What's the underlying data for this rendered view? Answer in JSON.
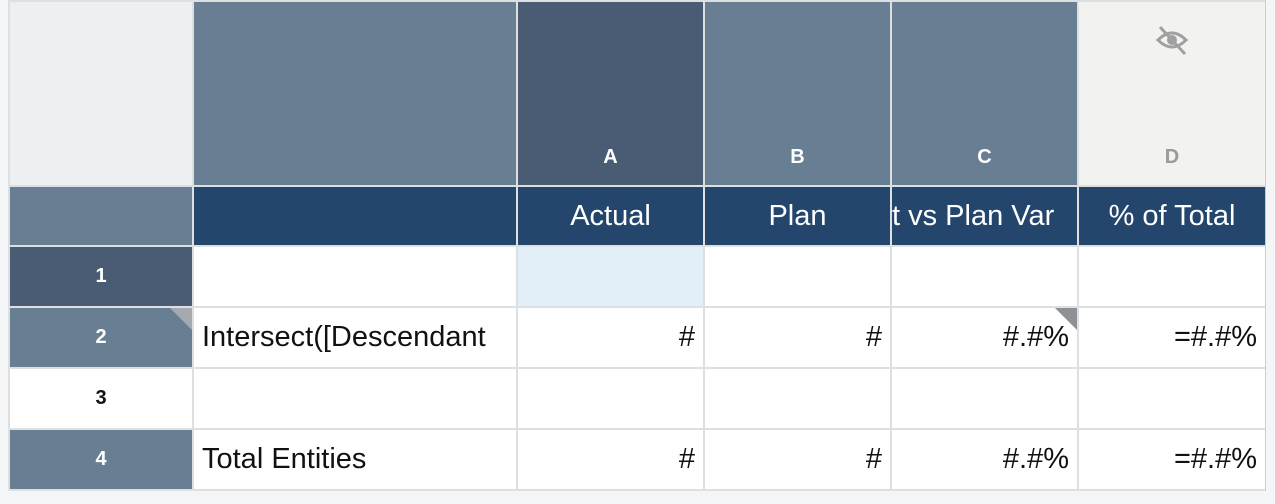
{
  "columns": [
    {
      "letter": "A",
      "header": "Actual"
    },
    {
      "letter": "B",
      "header": "Plan"
    },
    {
      "letter": "C",
      "header": "t vs Plan Var"
    },
    {
      "letter": "D",
      "header": "% of Total",
      "hidden_icon": "eye-slash-icon"
    }
  ],
  "rows": [
    {
      "num": "1",
      "label": "",
      "values": [
        "",
        "",
        "",
        ""
      ]
    },
    {
      "num": "2",
      "label": "Intersect([Descendant",
      "values": [
        "#",
        "#",
        "#.#%",
        "=#.#%"
      ]
    },
    {
      "num": "3",
      "label": "",
      "values": [
        "",
        "",
        "",
        ""
      ]
    },
    {
      "num": "4",
      "label": "Total Entities",
      "values": [
        "#",
        "#",
        "#.#%",
        "=#.#%"
      ]
    }
  ],
  "colors": {
    "header": "#687f93",
    "selected_header": "#4a5b74",
    "subheader": "#24466c",
    "selected_cell": "#e2eef8"
  }
}
